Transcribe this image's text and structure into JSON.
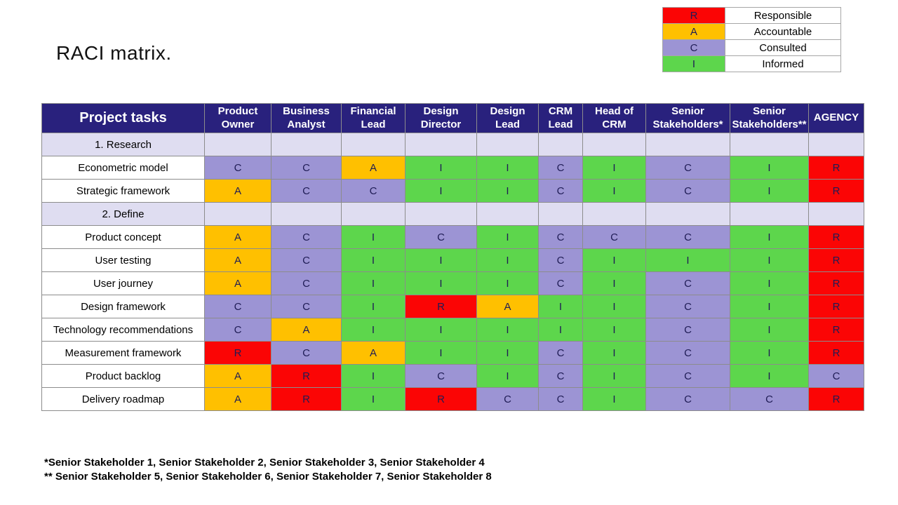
{
  "title": "RACI matrix.",
  "colors": {
    "header_bg": "#29217D",
    "header_text": "#FFFFFF",
    "section_bg": "#DFDDF1",
    "task_bg": "#FFFFFF",
    "letter_text": "#1F1C55",
    "R": "#FB0505",
    "A": "#FFC000",
    "C": "#9C94D4",
    "I": "#5DD64C"
  },
  "legend": {
    "items": [
      {
        "code": "R",
        "label": "Responsible"
      },
      {
        "code": "A",
        "label": "Accountable"
      },
      {
        "code": "C",
        "label": "Consulted"
      },
      {
        "code": "I",
        "label": "Informed"
      }
    ]
  },
  "matrix": {
    "header": [
      "Project tasks",
      "Product Owner",
      "Business Analyst",
      "Financial Lead",
      "Design Director",
      "Design Lead",
      "CRM Lead",
      "Head of CRM",
      "Senior Stakeholders*",
      "Senior Stakeholders**",
      "AGENCY"
    ],
    "rows": [
      {
        "type": "section",
        "label": "1. Research",
        "cells": [
          "",
          "",
          "",
          "",
          "",
          "",
          "",
          "",
          "",
          ""
        ]
      },
      {
        "type": "task",
        "label": "Econometric model",
        "cells": [
          "C",
          "C",
          "A",
          "I",
          "I",
          "C",
          "I",
          "C",
          "I",
          "R"
        ]
      },
      {
        "type": "task",
        "label": "Strategic framework",
        "cells": [
          "A",
          "C",
          "C",
          "I",
          "I",
          "C",
          "I",
          "C",
          "I",
          "R"
        ]
      },
      {
        "type": "section",
        "label": "2. Define",
        "cells": [
          "",
          "",
          "",
          "",
          "",
          "",
          "",
          "",
          "",
          ""
        ]
      },
      {
        "type": "task",
        "label": "Product concept",
        "cells": [
          "A",
          "C",
          "I",
          "C",
          "I",
          "C",
          "C",
          "C",
          "I",
          "R"
        ]
      },
      {
        "type": "task",
        "label": "User testing",
        "cells": [
          "A",
          "C",
          "I",
          "I",
          "I",
          "C",
          "I",
          "I",
          "I",
          "R"
        ]
      },
      {
        "type": "task",
        "label": "User journey",
        "cells": [
          "A",
          "C",
          "I",
          "I",
          "I",
          "C",
          "I",
          "C",
          "I",
          "R"
        ]
      },
      {
        "type": "task",
        "label": "Design framework",
        "cells": [
          "C",
          "C",
          "I",
          "R",
          "A",
          "I",
          "I",
          "C",
          "I",
          "R"
        ]
      },
      {
        "type": "task",
        "label": "Technology recommendations",
        "cells": [
          "C",
          "A",
          "I",
          "I",
          "I",
          "I",
          "I",
          "C",
          "I",
          "R"
        ]
      },
      {
        "type": "task",
        "label": "Measurement framework",
        "cells": [
          "R",
          "C",
          "A",
          "I",
          "I",
          "C",
          "I",
          "C",
          "I",
          "R"
        ]
      },
      {
        "type": "task",
        "label": "Product backlog",
        "cells": [
          "A",
          "R",
          "I",
          "C",
          "I",
          "C",
          "I",
          "C",
          "I",
          "C"
        ]
      },
      {
        "type": "task",
        "label": "Delivery roadmap",
        "cells": [
          "A",
          "R",
          "I",
          "R",
          "C",
          "C",
          "I",
          "C",
          "C",
          "R"
        ]
      }
    ]
  },
  "footnotes": [
    "*Senior Stakeholder 1, Senior Stakeholder 2, Senior Stakeholder 3, Senior Stakeholder 4",
    "** Senior Stakeholder 5, Senior Stakeholder 6, Senior Stakeholder 7, Senior Stakeholder 8"
  ]
}
